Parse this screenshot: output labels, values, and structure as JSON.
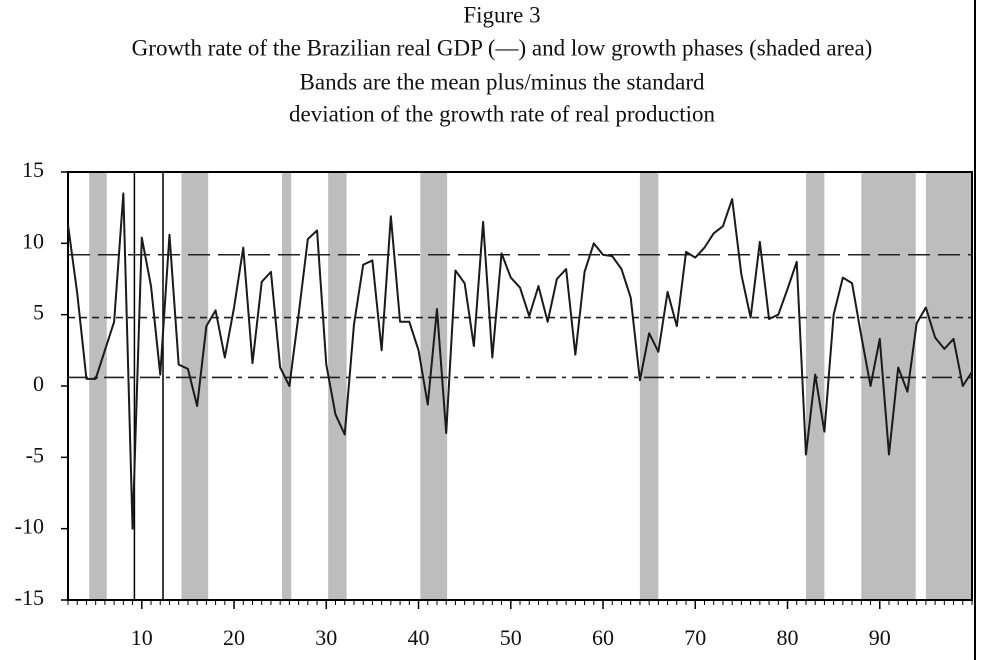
{
  "chart_data": {
    "type": "line",
    "title": "Figure 3",
    "subtitle": [
      "Growth rate of the Brazilian real GDP (—) and low growth phases (shaded area)",
      "Bands are the mean plus/minus the standard",
      "deviation of the growth rate of real production"
    ],
    "x": [
      2,
      3,
      4,
      5,
      6,
      7,
      8,
      9,
      10,
      11,
      12,
      13,
      14,
      15,
      16,
      17,
      18,
      19,
      20,
      21,
      22,
      23,
      24,
      25,
      26,
      27,
      28,
      29,
      30,
      31,
      32,
      33,
      34,
      35,
      36,
      37,
      38,
      39,
      40,
      41,
      42,
      43,
      44,
      45,
      46,
      47,
      48,
      49,
      50,
      51,
      52,
      53,
      54,
      55,
      56,
      57,
      58,
      59,
      60,
      61,
      62,
      63,
      64,
      65,
      66,
      67,
      68,
      69,
      70,
      71,
      72,
      73,
      74,
      75,
      76,
      77,
      78,
      79,
      80,
      81,
      82,
      83,
      84,
      85,
      86,
      87,
      88,
      89,
      90,
      91,
      92,
      93,
      94,
      95,
      96,
      97,
      98,
      99,
      100
    ],
    "series": [
      {
        "color": "#1a1a1a",
        "values": [
          11.3,
          6.5,
          0.5,
          0.5,
          2.5,
          4.5,
          13.5,
          -10,
          10.4,
          7,
          0.8,
          10.6,
          1.5,
          1.2,
          -1.4,
          4.2,
          5.3,
          2,
          5.5,
          9.7,
          1.6,
          7.3,
          8,
          1.3,
          0,
          5,
          10.3,
          10.9,
          1.5,
          -2,
          -3.4,
          4.3,
          8.5,
          8.8,
          2.5,
          11.9,
          4.5,
          4.5,
          2.5,
          -1.3,
          5.4,
          -3.3,
          8.1,
          7.2,
          2.8,
          11.5,
          2,
          9.3,
          7.6,
          6.9,
          4.9,
          7,
          4.5,
          7.5,
          8.2,
          2.2,
          8,
          10,
          9.2,
          9.1,
          8.2,
          6.2,
          0.4,
          3.7,
          2.4,
          6.6,
          4.2,
          9.4,
          9,
          9.7,
          10.7,
          11.2,
          13.1,
          7.8,
          4.8,
          10.1,
          4.7,
          5,
          6.8,
          8.7,
          -4.8,
          0.8,
          -3.2,
          5,
          7.6,
          7.2,
          3.5,
          0,
          3.3,
          -4.8,
          1.3,
          -0.4,
          4.4,
          5.5,
          3.4,
          2.6,
          3.3,
          0,
          1
        ]
      }
    ],
    "shaded": [
      [
        4.3,
        6.2
      ],
      [
        14.3,
        17.2
      ],
      [
        25.2,
        26.2
      ],
      [
        30.2,
        32.2
      ],
      [
        40.2,
        43.1
      ],
      [
        64,
        66
      ],
      [
        82,
        84
      ],
      [
        88,
        93.9
      ],
      [
        95,
        100
      ]
    ],
    "shade_color": "#bdbdbd",
    "vlines": [
      9.2,
      12.3
    ],
    "hlines": [
      {
        "value": 9.2,
        "style": "long-dash"
      },
      {
        "value": 4.8,
        "style": "short-dash"
      },
      {
        "value": 0.6,
        "style": "dash-dot"
      }
    ],
    "xlim": [
      2,
      100
    ],
    "ylim": [
      -15,
      15
    ],
    "xticks": [
      10,
      20,
      30,
      40,
      50,
      60,
      70,
      80,
      90
    ],
    "yticks": [
      15,
      10,
      5,
      0,
      -5,
      -10,
      -15
    ]
  }
}
